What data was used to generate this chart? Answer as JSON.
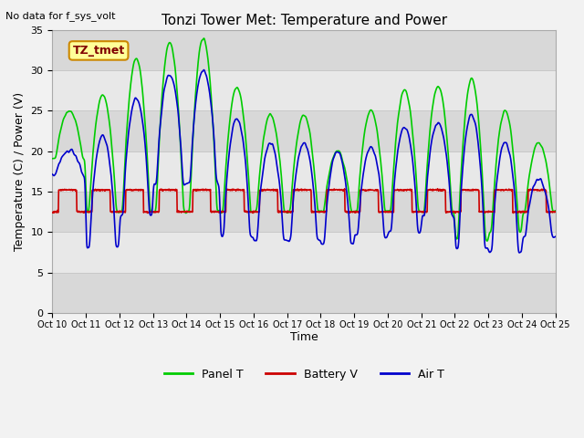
{
  "title": "Tonzi Tower Met: Temperature and Power",
  "top_left_text": "No data for f_sys_volt",
  "ylabel": "Temperature (C) / Power (V)",
  "xlabel": "Time",
  "xlim": [
    0,
    15
  ],
  "ylim": [
    0,
    35
  ],
  "yticks": [
    0,
    5,
    10,
    15,
    20,
    25,
    30,
    35
  ],
  "xtick_labels": [
    "Oct 10",
    "Oct 11",
    "Oct 12",
    "Oct 13",
    "Oct 14",
    "Oct 15",
    "Oct 16",
    "Oct 17",
    "Oct 18",
    "Oct 19",
    "Oct 20",
    "Oct 21",
    "Oct 22",
    "Oct 23",
    "Oct 24",
    "Oct 25"
  ],
  "legend_items": [
    "Panel T",
    "Battery V",
    "Air T"
  ],
  "panel_color": "#00cc00",
  "battery_color": "#cc0000",
  "air_color": "#0000cc",
  "fig_bg_color": "#f2f2f2",
  "plot_bg_color": "#e8e8e8",
  "band1_color": "#d8d8d8",
  "band2_color": "#e8e8e8",
  "grid_color": "#c8c8c8",
  "annotation_text": "TZ_tmet",
  "annotation_bg": "#ffff99",
  "annotation_border": "#cc8800",
  "annotation_text_color": "#800000",
  "title_fontsize": 11,
  "axis_fontsize": 9,
  "tick_fontsize": 8,
  "legend_fontsize": 9,
  "linewidth": 1.2,
  "panel_peaks": [
    25.0,
    27.0,
    31.5,
    33.5,
    34.0,
    28.0,
    24.5,
    24.5,
    20.0,
    25.0,
    27.5,
    28.0,
    29.0,
    25.0,
    21.0
  ],
  "air_peaks": [
    20.0,
    22.0,
    26.5,
    29.5,
    30.0,
    24.0,
    21.0,
    21.0,
    20.0,
    20.5,
    23.0,
    23.5,
    24.5,
    21.0,
    16.5
  ],
  "air_nights": [
    17.0,
    8.0,
    12.0,
    16.0,
    16.0,
    9.5,
    9.0,
    9.0,
    8.5,
    9.5,
    10.0,
    12.0,
    8.0,
    7.5,
    9.5
  ],
  "panel_nights": [
    19.0,
    12.5,
    12.5,
    12.5,
    12.5,
    12.5,
    12.5,
    12.5,
    12.5,
    12.5,
    12.5,
    12.5,
    9.0,
    10.0,
    12.5
  ],
  "batt_day": 15.2,
  "batt_night": 12.5
}
